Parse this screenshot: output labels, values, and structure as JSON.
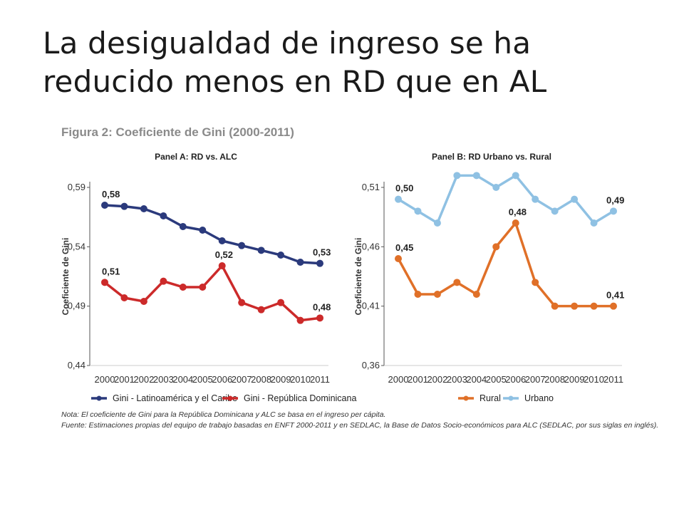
{
  "slide": {
    "title_line1": "La desigualdad de ingreso se ha",
    "title_line2": "reducido menos en RD que en AL"
  },
  "figure": {
    "title": "Figura 2: Coeficiente de Gini (2000-2011)",
    "note": "Nota: El coeficiente de Gini para la República Dominicana y ALC se basa en el ingreso per cápita.",
    "source": "Fuente: Estimaciones propias del equipo de trabajo basadas en ENFT 2000-2011 y en SEDLAC, la Base de Datos Socio-económicos para ALC (SEDLAC, por sus siglas en inglés)."
  },
  "colors": {
    "navy": "#2b3a7c",
    "red": "#cc2a2a",
    "orange": "#e07028",
    "lightblue": "#8fc1e3"
  },
  "chart_data": [
    {
      "type": "line",
      "title": "Panel A: RD vs. ALC",
      "ylabel": "Coeficiente de Gini",
      "x": [
        "2000",
        "2001",
        "2002",
        "2003",
        "2004",
        "2005",
        "2006",
        "2007",
        "2008",
        "2009",
        "2010",
        "2011"
      ],
      "ylim": [
        0.44,
        0.59
      ],
      "yticks": [
        0.44,
        0.49,
        0.54,
        0.59
      ],
      "ytick_labels": [
        "0,44",
        "0,49",
        "0,54",
        "0,59"
      ],
      "grid": false,
      "legend_position": "bottom",
      "series": [
        {
          "name": "Gini - Latinoamérica y el Caribe",
          "color": "#2b3a7c",
          "values": [
            0.575,
            0.574,
            0.572,
            0.566,
            0.557,
            0.554,
            0.545,
            0.541,
            0.537,
            0.533,
            0.527,
            0.526
          ],
          "labels": [
            {
              "index": 0,
              "text": "0,58"
            },
            {
              "index": 11,
              "text": "0,53"
            }
          ]
        },
        {
          "name": "Gini - República Dominicana",
          "color": "#cc2a2a",
          "values": [
            0.51,
            0.497,
            0.494,
            0.511,
            0.506,
            0.506,
            0.524,
            0.493,
            0.487,
            0.493,
            0.478,
            0.48
          ],
          "labels": [
            {
              "index": 0,
              "text": "0,51"
            },
            {
              "index": 6,
              "text": "0,52"
            },
            {
              "index": 11,
              "text": "0,48"
            }
          ]
        }
      ]
    },
    {
      "type": "line",
      "title": "Panel B: RD Urbano vs. Rural",
      "ylabel": "Coeficiente de Gini",
      "x": [
        "2000",
        "2001",
        "2002",
        "2003",
        "2004",
        "2005",
        "2006",
        "2007",
        "2008",
        "2009",
        "2010",
        "2011"
      ],
      "ylim": [
        0.36,
        0.51
      ],
      "yticks": [
        0.36,
        0.41,
        0.46,
        0.51
      ],
      "ytick_labels": [
        "0,36",
        "0,41",
        "0,46",
        "0,51"
      ],
      "grid": false,
      "legend_position": "bottom",
      "series": [
        {
          "name": "Rural",
          "color": "#e07028",
          "values": [
            0.45,
            0.42,
            0.42,
            0.43,
            0.42,
            0.46,
            0.48,
            0.43,
            0.41,
            0.41,
            0.41,
            0.41
          ],
          "labels": [
            {
              "index": 0,
              "text": "0,45"
            },
            {
              "index": 6,
              "text": "0,48"
            },
            {
              "index": 11,
              "text": "0,41"
            }
          ]
        },
        {
          "name": "Urbano",
          "color": "#8fc1e3",
          "values": [
            0.5,
            0.49,
            0.48,
            0.52,
            0.52,
            0.51,
            0.52,
            0.5,
            0.49,
            0.5,
            0.48,
            0.49
          ],
          "labels": [
            {
              "index": 0,
              "text": "0,50"
            },
            {
              "index": 11,
              "text": "0,49"
            }
          ]
        }
      ]
    }
  ]
}
